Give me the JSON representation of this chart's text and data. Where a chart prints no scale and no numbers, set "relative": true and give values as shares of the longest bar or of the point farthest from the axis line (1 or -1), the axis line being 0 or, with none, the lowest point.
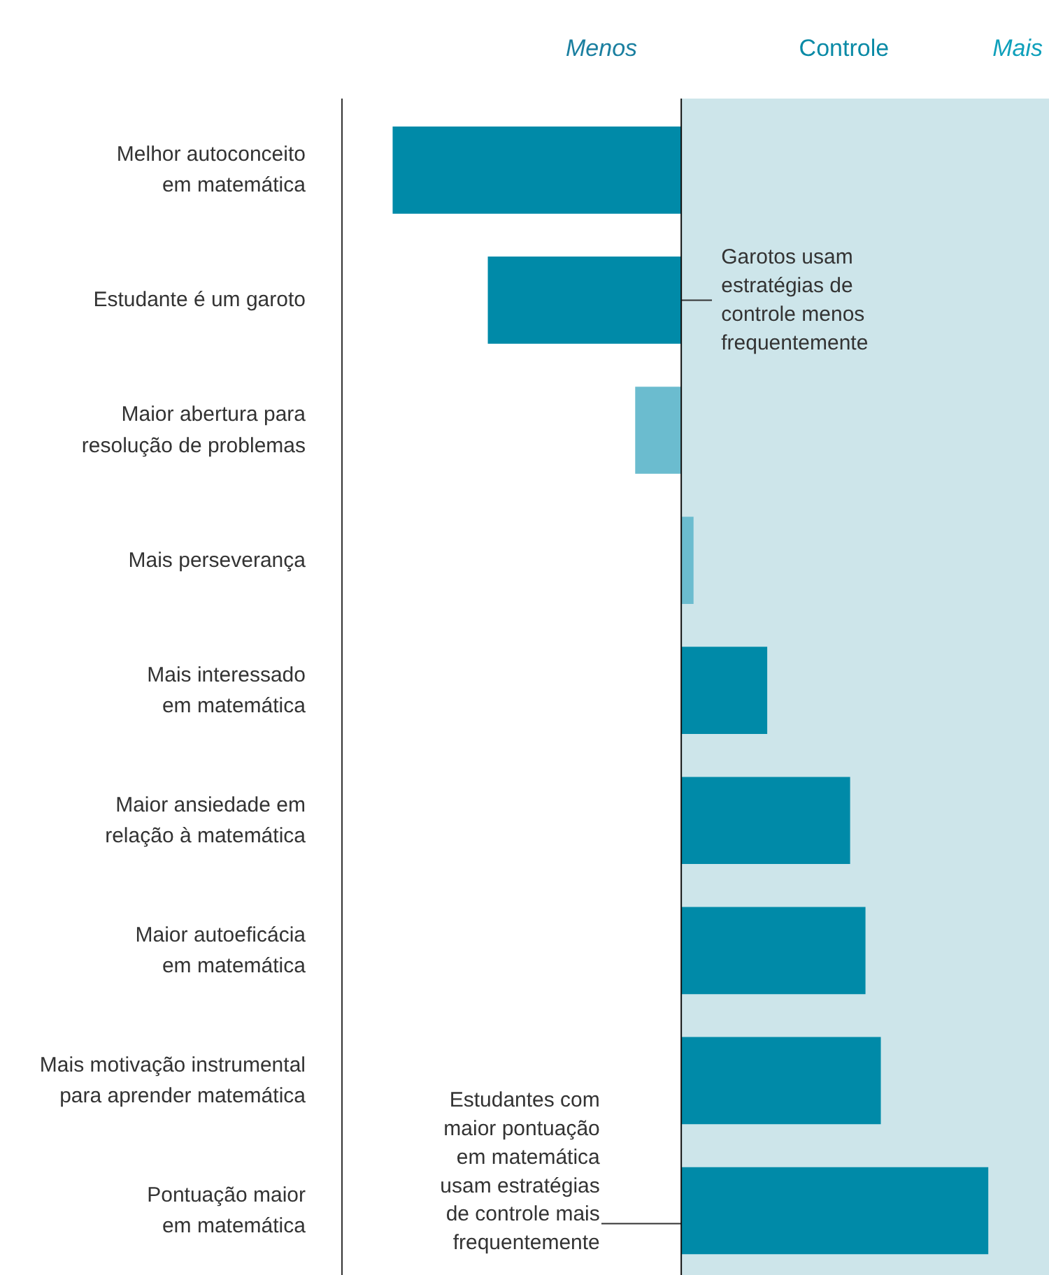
{
  "chart_data": {
    "type": "bar",
    "orientation": "horizontal",
    "relative": true,
    "categories": [
      "Melhor autoconceito em matemática",
      "Estudante é um garoto",
      "Maior abertura para resolução de problemas",
      "Mais perseverança",
      "Mais interessado em matemática",
      "Maior ansiedade em relação à matemática",
      "Maior autoeficácia em matemática",
      "Mais motivação instrumental para aprender matemática",
      "Pontuação maior em matemática"
    ],
    "values": [
      -0.94,
      -0.63,
      -0.15,
      0.04,
      0.28,
      0.55,
      0.6,
      0.65,
      1
    ],
    "colors": [
      "#008aa8",
      "#008aa8",
      "#6bbccf",
      "#6bbccf",
      "#008aa8",
      "#008aa8",
      "#008aa8",
      "#008aa8",
      "#008aa8"
    ],
    "bands": [
      {
        "axis": "x",
        "from": 0,
        "to": 1.2,
        "color": "#cde5ea"
      }
    ],
    "annotations": [
      "Menos",
      "Controle",
      "Mais",
      "Garotos usam estratégias de controle menos frequentemente",
      "Estudantes com maior pontuação em matemática usam estratégias de controle mais frequentemente"
    ],
    "grid": false
  }
}
